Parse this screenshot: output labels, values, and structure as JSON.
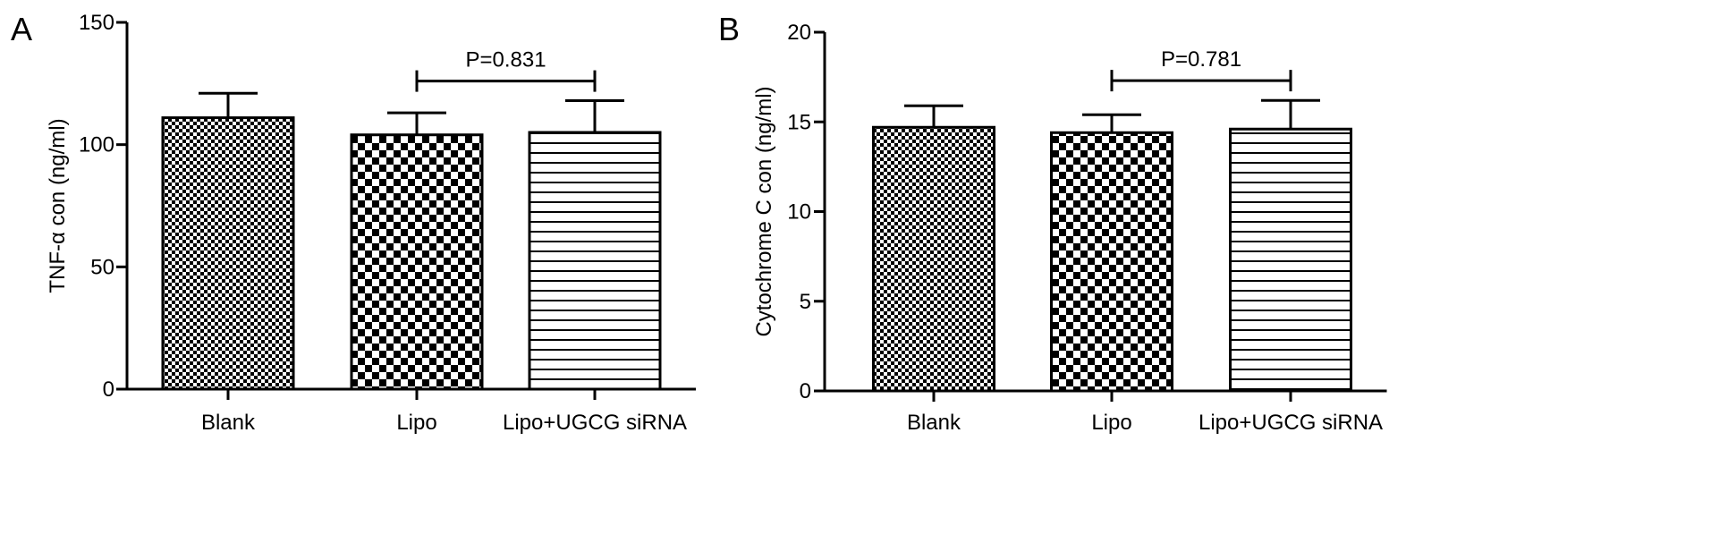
{
  "panels": [
    {
      "label": "A",
      "chart_data": {
        "type": "bar",
        "title": "",
        "xlabel": "",
        "ylabel": "TNF-α con (ng/ml)",
        "categories": [
          "Blank",
          "Lipo",
          "Lipo+UGCG siRNA"
        ],
        "values": [
          111,
          104,
          105
        ],
        "errors": [
          10,
          9,
          13
        ],
        "ylim": [
          0,
          150
        ],
        "yticks": [
          "0",
          "50",
          "100",
          "150"
        ],
        "patterns": [
          "fine-check",
          "coarse-check",
          "horizontal-lines"
        ],
        "annotation": {
          "text": "P=0.831",
          "from": 1,
          "to": 2,
          "y": 126
        },
        "grid": false
      }
    },
    {
      "label": "B",
      "chart_data": {
        "type": "bar",
        "title": "",
        "xlabel": "",
        "ylabel": "Cytochrome C con (ng/ml)",
        "categories": [
          "Blank",
          "Lipo",
          "Lipo+UGCG siRNA"
        ],
        "values": [
          14.7,
          14.4,
          14.6
        ],
        "errors": [
          1.2,
          1.0,
          1.6
        ],
        "ylim": [
          0,
          20
        ],
        "yticks": [
          "0",
          "5",
          "10",
          "15",
          "20"
        ],
        "patterns": [
          "fine-check",
          "coarse-check",
          "horizontal-lines"
        ],
        "annotation": {
          "text": "P=0.781",
          "from": 1,
          "to": 2,
          "y": 17.3
        },
        "grid": false
      }
    }
  ]
}
